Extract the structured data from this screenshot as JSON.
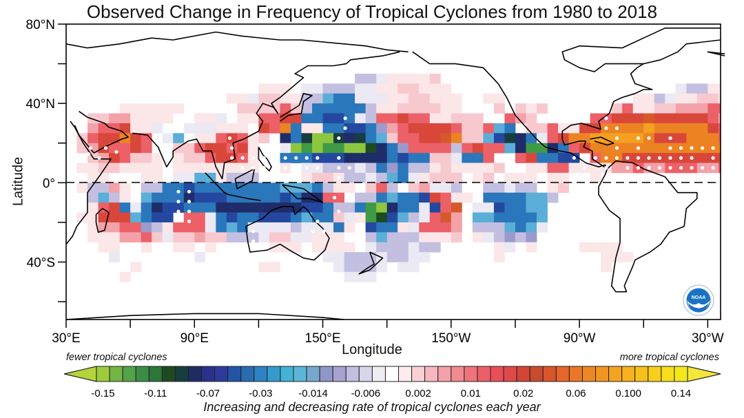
{
  "title": "Observed Change in Frequency of Tropical Cyclones from 1980 to 2018",
  "chart_data": {
    "type": "heatmap",
    "title": "Observed Change in Frequency of Tropical Cyclones from 1980 to 2018",
    "xlabel": "Longitude",
    "ylabel": "Latitude",
    "x_ticks": [
      "30°E",
      "90°E",
      "150°E",
      "150°W",
      "90°W",
      "30°W"
    ],
    "y_ticks": [
      "80°N",
      "40°N",
      "0°",
      "40°S"
    ],
    "x_range_deg_east": [
      30,
      336
    ],
    "y_range_deg": [
      -69,
      80
    ],
    "grid_cell_deg": 5,
    "equator_line": "dashed",
    "colorbar": {
      "left_note": "fewer tropical cyclones",
      "right_note": "more tropical cyclones",
      "caption": "Increasing and decreasing rate of tropical cyclones each year",
      "tick_labels": [
        "-0.15",
        "-0.11",
        "-0.07",
        "-0.03",
        "-0.014",
        "-0.006",
        "0.002",
        "0.01",
        "0.02",
        "0.06",
        "0.100",
        "0.14"
      ],
      "extend": "both",
      "colors": [
        "#9ccb3c",
        "#72b544",
        "#52a448",
        "#3b8c46",
        "#2d7638",
        "#1e4a23",
        "#173d3e",
        "#1f2c64",
        "#2b318a",
        "#2e3b9c",
        "#2355a6",
        "#2a6cb2",
        "#2d83c3",
        "#339ccd",
        "#43b2d4",
        "#5ab5d8",
        "#78a7cd",
        "#8e97c7",
        "#a7a1d0",
        "#c2bedf",
        "#d8d6ea",
        "#eeedf4",
        "#ffffff",
        "#fdecee",
        "#f8d0d6",
        "#f5b9bf",
        "#f3a0a7",
        "#f08a90",
        "#ee737b",
        "#ec5f67",
        "#ea4e57",
        "#e04949",
        "#d34535",
        "#c94a2e",
        "#d9552b",
        "#e5662a",
        "#ea7727",
        "#ee8624",
        "#f19522",
        "#f4a320",
        "#f6b11d",
        "#f8c01b",
        "#f9cf19",
        "#f6de1a",
        "#f3e81c"
      ],
      "left_extend_color": "#b5d33a",
      "right_extend_color": "#f5e63a"
    },
    "palette_codes": {
      ".": null,
      "a": "#fbe6e8",
      "b": "#f7c9cf",
      "c": "#f2a2a8",
      "d": "#ec6068",
      "e": "#d9473b",
      "f": "#d55a2a",
      "g": "#ec8322",
      "h": "#f4a020",
      "p": "#ebe9f3",
      "q": "#c3bfe0",
      "o": "#9a9bcc",
      "r": "#5aaed7",
      "s": "#2a77bb",
      "t": "#2448a0",
      "u": "#1f2c6a",
      "G": "#1e4a23",
      "H": "#3e9a45",
      "L": "#8dc63f",
      "T": "#173d3e"
    },
    "grid_origin": {
      "lon_east": 30,
      "lat_top": 55
    },
    "rows": [
      "...........................qqpaaaab...........................",
      "..................aaa.ppqqqppaabbaaa.....................pqqaab",
      "...............aapbbaaqqrsspppaabbaaa..aa............aaqpaabbaa",
      ".....aaaaaa.....bbbbdbqsssssqaabbbbaa...b.bab......bdaabbcccddd",
      "..bbccaaaa..aap.aaddeessttspqddeddaabbb..dcb.....ddeeefeeeeedcb",
      "..cddeaap..pppaaa.edgsaassttsocdeeeedbbdrs.bbdaaeegggghgggggedba",
      ".bdeeged.pr.aadedab.usTLLTuTsrbddeefgbbrtTuspdegghhhhhgeeegggda",
      ".bcedded..bbdeedea..pLHLHHLLGusoddddqdeddruHHusdegggggggggggggeb",
      "..bcedbba.abbdeeda..ssstttuuuustssbbpssd..desstt.dggeeeeeeeeeeedb",
      ".aabbaaaa.aaaaaaaa..a.ppqqqpqsosqqabaaaab..aaddaaaaccdccdddccdb.",
      "..aa...aa.pprraqqq....abbaqqpqrspabbb.ab.aaa.aa..a.............",
      ".aqqca.qqsstssssssssrrrsqaa.bdq.bcppq..qqpqq.ab.................",
      "..qrqa.rsssutttssssstsuudd.qqsrsstedaa.ssssrrq.................",
      "..adespsuttsssuuuuuuuuttsqqsHLussptdf.pptssrr.................",
      ".aaeeerstt.ddpstsstttsrssbpaHGtrqpdfc.rrssssr.................",
      "..accddoqadddpsrsppppqpppsa.tssapdddc.qqqrsrp.................",
      "..aaaccdbpbbcbbqqqpbbppaaa..qrqqqaaab.apqoqo..................",
      "...aa..a..aa.a.....aaa.aaaa.pqqqpqq.....ap.a....aaaa...........",
      "....p.......p...........ppqqqpqqpp......a.........aaa..........",
      "......a...........aa.....pqqqp.pp.................a............",
      ".....a....................ppp..........................."
    ],
    "significance_dots": [
      [
        41,
        20
      ],
      [
        48,
        20
      ],
      [
        53,
        18
      ],
      [
        40,
        17
      ],
      [
        45,
        15
      ],
      [
        37,
        15
      ],
      [
        106,
        25
      ],
      [
        107,
        20
      ],
      [
        107,
        15
      ],
      [
        112,
        15
      ],
      [
        117,
        15
      ],
      [
        112,
        10
      ],
      [
        117,
        10
      ],
      [
        122,
        10
      ],
      [
        127,
        10
      ],
      [
        132,
        10
      ],
      [
        137,
        10
      ],
      [
        142,
        10
      ],
      [
        122,
        15
      ],
      [
        132,
        15
      ],
      [
        137,
        15
      ],
      [
        142,
        15
      ],
      [
        147,
        15
      ],
      [
        127,
        15
      ],
      [
        147,
        10
      ],
      [
        160,
        35
      ],
      [
        160,
        30
      ],
      [
        157,
        25
      ],
      [
        157,
        15
      ],
      [
        157,
        10
      ],
      [
        162,
        10
      ],
      [
        157,
        5
      ],
      [
        155,
        -5
      ],
      [
        82,
        -2
      ],
      [
        87,
        -2
      ],
      [
        82,
        -7
      ],
      [
        87,
        -7
      ],
      [
        82,
        -12
      ],
      [
        87,
        -12
      ],
      [
        87,
        -17
      ],
      [
        157,
        -12
      ],
      [
        117,
        -22
      ],
      [
        117,
        -27
      ],
      [
        147,
        -17
      ],
      [
        145,
        -22
      ],
      [
        150,
        -22
      ],
      [
        -78,
        35
      ],
      [
        -78,
        30
      ],
      [
        -73,
        30
      ],
      [
        -73,
        25
      ],
      [
        -63,
        25
      ],
      [
        -58,
        25
      ],
      [
        -73,
        20
      ],
      [
        -63,
        20
      ],
      [
        -48,
        25
      ],
      [
        -48,
        20
      ],
      [
        -43,
        20
      ],
      [
        -38,
        20
      ],
      [
        -33,
        20
      ],
      [
        -28,
        20
      ],
      [
        -23,
        20
      ],
      [
        -93,
        15
      ],
      [
        -83,
        15
      ],
      [
        -78,
        15
      ],
      [
        -73,
        15
      ],
      [
        -68,
        15
      ],
      [
        -63,
        15
      ],
      [
        -58,
        15
      ],
      [
        -53,
        15
      ],
      [
        -48,
        15
      ],
      [
        -43,
        15
      ],
      [
        -38,
        15
      ],
      [
        -28,
        15
      ],
      [
        -23,
        15
      ],
      [
        -88,
        10
      ],
      [
        -78,
        10
      ],
      [
        -68,
        10
      ],
      [
        -63,
        10
      ],
      [
        -58,
        10
      ],
      [
        -53,
        10
      ],
      [
        -48,
        10
      ],
      [
        -43,
        10
      ],
      [
        -38,
        10
      ],
      [
        -33,
        10
      ],
      [
        -28,
        10
      ],
      [
        -23,
        10
      ],
      [
        -73,
        5
      ]
    ]
  },
  "logo": {
    "name": "NOAA",
    "text": "NOAA"
  }
}
